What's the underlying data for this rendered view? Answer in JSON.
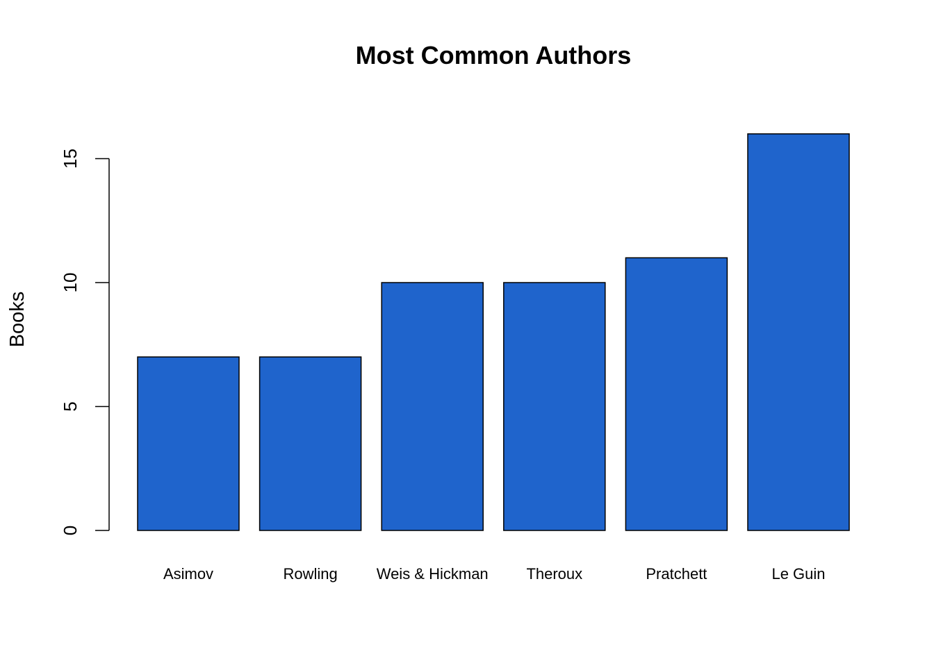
{
  "chart_data": {
    "type": "bar",
    "title": "Most Common Authors",
    "xlabel": "",
    "ylabel": "Books",
    "categories": [
      "Asimov",
      "Rowling",
      "Weis & Hickman",
      "Theroux",
      "Pratchett",
      "Le Guin"
    ],
    "values": [
      7,
      7,
      10,
      10,
      11,
      16
    ],
    "ylim": [
      0,
      16
    ],
    "yticks": [
      0,
      5,
      10,
      15
    ],
    "ytick_labels": [
      "0",
      "5",
      "10",
      "15"
    ],
    "bar_color": "#1f64cc",
    "bar_outline_color": "#000000",
    "grid": false,
    "legend": "none"
  }
}
